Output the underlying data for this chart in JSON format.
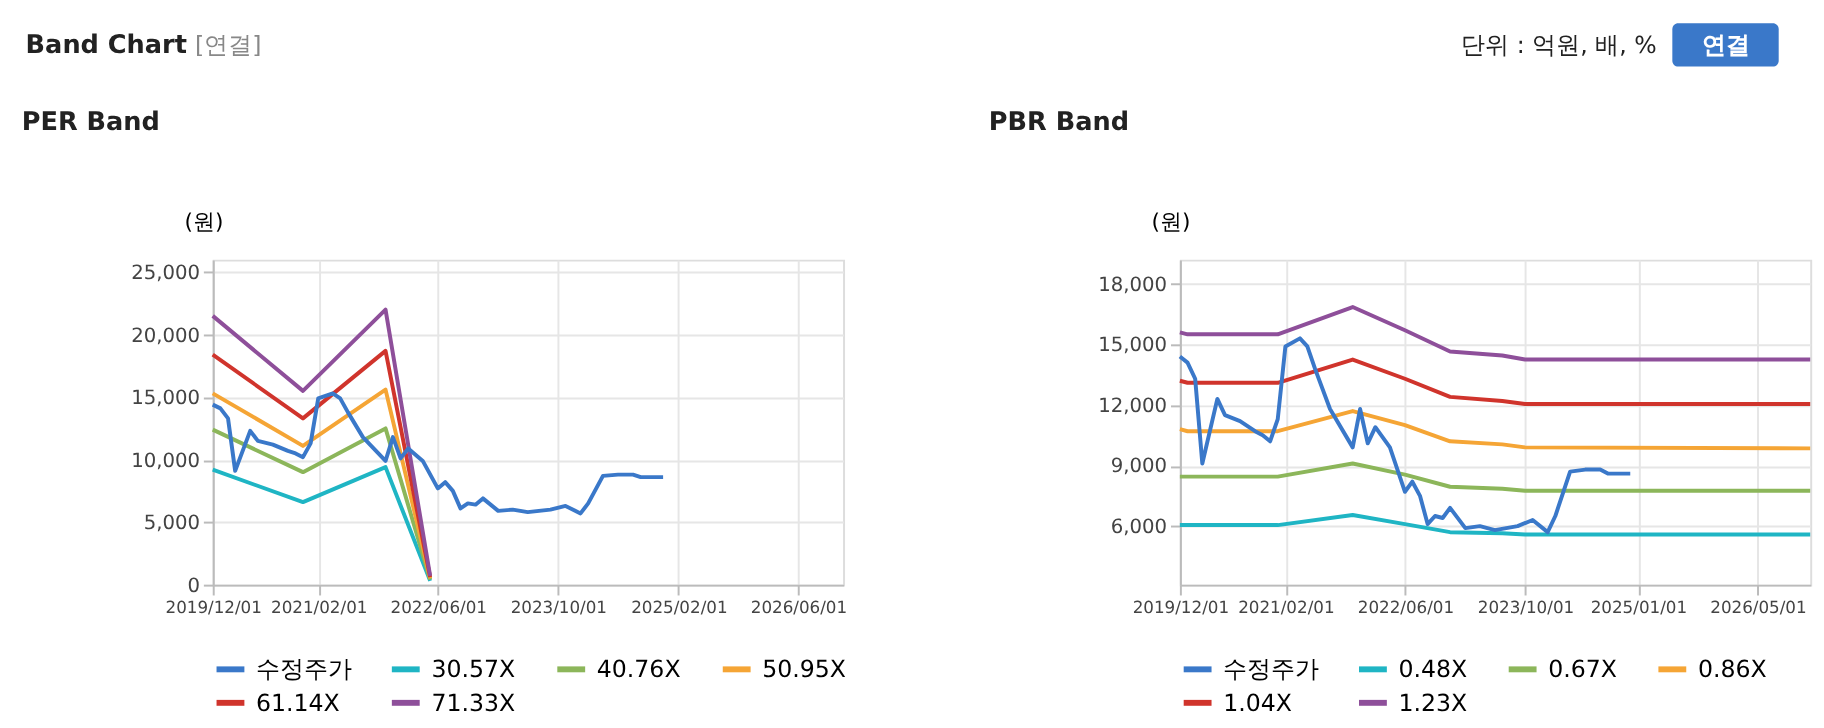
{
  "chart_data": [
    {
      "type": "other",
      "title": "Band Chart",
      "annotations": [
        "[연결]",
        "단위 : 억원, 배, %",
        "연결"
      ]
    },
    {
      "type": "line",
      "title": "PER Band",
      "ylabel": "(원)",
      "xlim": [
        "2019-12-01",
        "2026-12-01"
      ],
      "xticks": [
        {
          "value": "2019-12-01",
          "label": "2019/12/01"
        },
        {
          "value": "2021-02-01",
          "label": "2021/02/01"
        },
        {
          "value": "2022-06-01",
          "label": "2022/06/01"
        },
        {
          "value": "2023-10-01",
          "label": "2023/10/01"
        },
        {
          "value": "2025-02-01",
          "label": "2025/02/01"
        },
        {
          "value": "2026-06-01",
          "label": "2026/06/01"
        }
      ],
      "ylim": [
        0,
        26000
      ],
      "yticks": [
        0,
        {
          "value": 5000,
          "label": "5,000"
        },
        {
          "value": 10000,
          "label": "10,000"
        },
        {
          "value": 15000,
          "label": "15,000"
        },
        {
          "value": 20000,
          "label": "20,000"
        },
        {
          "value": 25000,
          "label": "25,000"
        }
      ],
      "grid": true,
      "legend": "bottom",
      "series": [
        {
          "name": "수정주가",
          "color": "#3a78c9",
          "x": [
            "2019-12-01",
            "2020-01-01",
            "2020-02-01",
            "2020-03-01",
            "2020-05-01",
            "2020-06-01",
            "2020-08-01",
            "2020-10-01",
            "2020-11-01",
            "2020-12-01",
            "2021-01-01",
            "2021-02-01",
            "2021-04-01",
            "2021-05-01",
            "2021-06-01",
            "2021-08-01",
            "2021-11-01",
            "2021-12-01",
            "2022-01-01",
            "2022-02-01",
            "2022-04-01",
            "2022-06-01",
            "2022-07-01",
            "2022-08-01",
            "2022-09-01",
            "2022-10-01",
            "2022-11-01",
            "2022-12-01",
            "2023-02-01",
            "2023-04-01",
            "2023-06-01",
            "2023-09-01",
            "2023-11-01",
            "2024-01-01",
            "2024-02-01",
            "2024-04-01",
            "2024-06-01",
            "2024-08-01",
            "2024-09-01",
            "2024-12-01"
          ],
          "values": [
            14400,
            14100,
            13300,
            9100,
            12300,
            11500,
            11200,
            10700,
            10500,
            10200,
            11300,
            14900,
            15300,
            14900,
            13800,
            11800,
            9900,
            11800,
            10100,
            10900,
            9900,
            7700,
            8200,
            7500,
            6100,
            6500,
            6400,
            6900,
            5900,
            6000,
            5800,
            6000,
            6300,
            5700,
            6500,
            8700,
            8800,
            8800,
            8600,
            8600
          ]
        },
        {
          "name": "30.57X",
          "color": "#1fb5c4",
          "x": [
            "2019-12-01",
            "2020-12-01",
            "2021-11-01",
            "2022-05-01"
          ],
          "values": [
            9200,
            6600,
            9400,
            300
          ]
        },
        {
          "name": "40.76X",
          "color": "#8cb65a",
          "x": [
            "2019-12-01",
            "2020-12-01",
            "2021-11-01",
            "2022-05-01"
          ],
          "values": [
            12400,
            9000,
            12500,
            400
          ]
        },
        {
          "name": "50.95X",
          "color": "#f5a535",
          "x": [
            "2019-12-01",
            "2020-12-01",
            "2021-11-01",
            "2022-05-01"
          ],
          "values": [
            15300,
            11100,
            15600,
            500
          ]
        },
        {
          "name": "61.14X",
          "color": "#d0342c",
          "x": [
            "2019-12-01",
            "2020-12-01",
            "2021-11-01",
            "2022-05-01"
          ],
          "values": [
            18400,
            13300,
            18700,
            600
          ]
        },
        {
          "name": "71.33X",
          "color": "#8e4f9a",
          "x": [
            "2019-12-01",
            "2020-12-01",
            "2021-11-01",
            "2022-05-01"
          ],
          "values": [
            21500,
            15500,
            22000,
            700
          ]
        }
      ]
    },
    {
      "type": "line",
      "title": "PBR Band",
      "ylabel": "(원)",
      "xlim": [
        "2019-12-01",
        "2026-12-01"
      ],
      "xticks": [
        {
          "value": "2019-12-01",
          "label": "2019/12/01"
        },
        {
          "value": "2021-02-01",
          "label": "2021/02/01"
        },
        {
          "value": "2022-06-01",
          "label": "2022/06/01"
        },
        {
          "value": "2023-10-01",
          "label": "2023/10/01"
        },
        {
          "value": "2025-01-01",
          "label": "2025/01/01"
        },
        {
          "value": "2026-05-01",
          "label": "2026/05/01"
        }
      ],
      "ylim": [
        3100,
        19200
      ],
      "yticks": [
        {
          "value": 6000,
          "label": "6,000"
        },
        {
          "value": 9000,
          "label": "9,000"
        },
        {
          "value": 12000,
          "label": "12,000"
        },
        {
          "value": 15000,
          "label": "15,000"
        },
        {
          "value": 18000,
          "label": "18,000"
        }
      ],
      "grid": true,
      "legend": "bottom",
      "series": [
        {
          "name": "수정주가",
          "color": "#3a78c9",
          "x": [
            "2019-12-01",
            "2020-01-01",
            "2020-02-01",
            "2020-03-01",
            "2020-05-01",
            "2020-06-01",
            "2020-08-01",
            "2020-10-01",
            "2020-11-01",
            "2020-12-01",
            "2021-01-01",
            "2021-02-01",
            "2021-04-01",
            "2021-05-01",
            "2021-06-01",
            "2021-08-01",
            "2021-11-01",
            "2021-12-01",
            "2022-01-01",
            "2022-02-01",
            "2022-04-01",
            "2022-06-01",
            "2022-07-01",
            "2022-08-01",
            "2022-09-01",
            "2022-10-01",
            "2022-11-01",
            "2022-12-01",
            "2023-02-01",
            "2023-04-01",
            "2023-06-01",
            "2023-09-01",
            "2023-11-01",
            "2024-01-01",
            "2024-02-01",
            "2024-04-01",
            "2024-06-01",
            "2024-08-01",
            "2024-09-01",
            "2024-12-01"
          ],
          "values": [
            14400,
            14100,
            13300,
            9100,
            12300,
            11500,
            11200,
            10700,
            10500,
            10200,
            11300,
            14900,
            15300,
            14900,
            13800,
            11800,
            9900,
            11800,
            10100,
            10900,
            9900,
            7700,
            8200,
            7500,
            6100,
            6500,
            6400,
            6900,
            5900,
            6000,
            5800,
            6000,
            6300,
            5700,
            6500,
            8700,
            8800,
            8800,
            8600,
            8600
          ]
        },
        {
          "name": "0.48X",
          "color": "#1fb5c4",
          "x": [
            "2019-12-01",
            "2020-01-01",
            "2021-01-01",
            "2021-11-01",
            "2022-06-01",
            "2022-12-01",
            "2023-07-01",
            "2023-10-01",
            "2026-12-01"
          ],
          "values": [
            6050,
            6050,
            6050,
            6550,
            6100,
            5700,
            5650,
            5580,
            5580
          ]
        },
        {
          "name": "0.67X",
          "color": "#8cb65a",
          "x": [
            "2019-12-01",
            "2020-01-01",
            "2021-01-01",
            "2021-11-01",
            "2022-06-01",
            "2022-12-01",
            "2023-07-01",
            "2023-10-01",
            "2026-12-01"
          ],
          "values": [
            8450,
            8450,
            8450,
            9100,
            8550,
            7950,
            7850,
            7750,
            7750
          ]
        },
        {
          "name": "0.86X",
          "color": "#f5a535",
          "x": [
            "2019-12-01",
            "2020-01-01",
            "2021-01-01",
            "2021-11-01",
            "2022-06-01",
            "2022-12-01",
            "2023-07-01",
            "2023-10-01",
            "2026-12-01"
          ],
          "values": [
            10800,
            10700,
            10700,
            11700,
            11000,
            10200,
            10050,
            9900,
            9850
          ]
        },
        {
          "name": "1.04X",
          "color": "#d0342c",
          "x": [
            "2019-12-01",
            "2020-01-01",
            "2021-01-01",
            "2021-11-01",
            "2022-06-01",
            "2022-12-01",
            "2023-07-01",
            "2023-10-01",
            "2026-12-01"
          ],
          "values": [
            13200,
            13100,
            13100,
            14250,
            13300,
            12400,
            12200,
            12050,
            12050
          ]
        },
        {
          "name": "1.23X",
          "color": "#8e4f9a",
          "x": [
            "2019-12-01",
            "2020-01-01",
            "2021-01-01",
            "2021-11-01",
            "2022-06-01",
            "2022-12-01",
            "2023-07-01",
            "2023-10-01",
            "2026-12-01"
          ],
          "values": [
            15600,
            15500,
            15500,
            16850,
            15700,
            14650,
            14450,
            14250,
            14250
          ]
        }
      ]
    }
  ]
}
